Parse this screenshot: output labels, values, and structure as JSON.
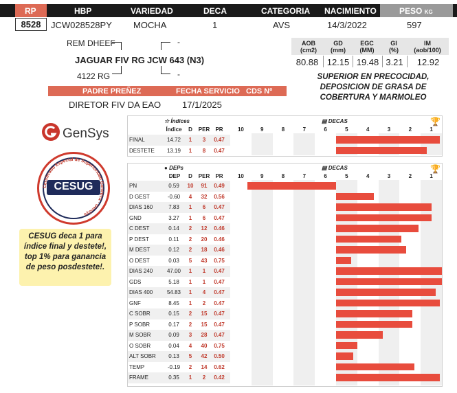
{
  "header": {
    "labels": {
      "rp": "RP",
      "hbp": "HBP",
      "variedad": "VARIEDAD",
      "deca": "DECA",
      "categoria": "CATEGORIA",
      "nacimiento": "NACIMIENTO",
      "peso": "PESO",
      "peso_unit": "KG"
    },
    "values": {
      "rp": "8528",
      "hbp": "JCW028528PY",
      "variedad": "MOCHA",
      "deca": "1",
      "categoria": "AVS",
      "nacimiento": "14/3/2022",
      "peso": "597"
    }
  },
  "pedigree": {
    "sire_sire": "REM DHEEF",
    "sire": "JAGUAR FIV RG",
    "sire_dam": "4122 RG",
    "dam": "JCW 643 (N3)",
    "dam_sire": "-",
    "dam_dam": "-"
  },
  "aob_table": {
    "headers": [
      {
        "name": "AOB",
        "unit": "(cm2)"
      },
      {
        "name": "GD",
        "unit": "(mm)"
      },
      {
        "name": "EGC",
        "unit": "(MM)"
      },
      {
        "name": "GI",
        "unit": "(%)"
      },
      {
        "name": "IM",
        "unit": "(aob/100)"
      }
    ],
    "values": [
      "80.88",
      "12.15",
      "19.48",
      "3.21",
      "12.92"
    ]
  },
  "description": "SUPERIOR EN PRECOCIDAD, DEPOSICION DE GRASA DE COBERTURA Y MARMOLEO",
  "service": {
    "labels": {
      "padre": "PADRE PREÑEZ",
      "fecha": "FECHA SERVICIO",
      "cds": "CDS Nº"
    },
    "padre": "DIRETOR FIV DA EAO",
    "fecha": "17/1/2025",
    "cds": ""
  },
  "logos": {
    "gensys": "GenSys",
    "seal_text": "CESUG",
    "seal_ring": "Certificado Especial de Superioridad Genética · GenSys"
  },
  "promo": "CESUG deca 1 para índice final y destete!, top 1% para ganancia de peso posdestete!.",
  "indices_table": {
    "section_label": "Índices",
    "decas_label": "DECAS",
    "columns": [
      "Índice",
      "D",
      "PER",
      "PR"
    ],
    "deca_ticks": [
      "10",
      "9",
      "8",
      "7",
      "6",
      "5",
      "4",
      "3",
      "2",
      "1"
    ],
    "trophy_icon": "trophy-icon",
    "rows": [
      {
        "name": "FINAL",
        "value": "14.72",
        "d": "1",
        "per": "3",
        "pr": "0.47",
        "bar": 4.9
      },
      {
        "name": "DESTETE",
        "value": "13.19",
        "d": "1",
        "per": "8",
        "pr": "0.47",
        "bar": 4.3
      }
    ]
  },
  "deps_table": {
    "section_label": "DEPs",
    "decas_label": "DECAS",
    "columns": [
      "DEP",
      "D",
      "PER",
      "PR"
    ],
    "deca_ticks": [
      "10",
      "9",
      "8",
      "7",
      "6",
      "5",
      "4",
      "3",
      "2",
      "1"
    ],
    "trophy_icon": "trophy-icon",
    "rows": [
      {
        "name": "PN",
        "value": "0.59",
        "d": "10",
        "per": "91",
        "pr": "0.49",
        "bar": -4.2
      },
      {
        "name": "D GEST",
        "value": "-0.60",
        "d": "4",
        "per": "32",
        "pr": "0.56",
        "bar": 1.8
      },
      {
        "name": "DIAS 160",
        "value": "7.83",
        "d": "1",
        "per": "6",
        "pr": "0.47",
        "bar": 4.5
      },
      {
        "name": "GND",
        "value": "3.27",
        "d": "1",
        "per": "6",
        "pr": "0.47",
        "bar": 4.5
      },
      {
        "name": "C DEST",
        "value": "0.14",
        "d": "2",
        "per": "12",
        "pr": "0.46",
        "bar": 3.9
      },
      {
        "name": "P DEST",
        "value": "0.11",
        "d": "2",
        "per": "20",
        "pr": "0.46",
        "bar": 3.1
      },
      {
        "name": "M DEST",
        "value": "0.12",
        "d": "2",
        "per": "18",
        "pr": "0.46",
        "bar": 3.3
      },
      {
        "name": "O DEST",
        "value": "0.03",
        "d": "5",
        "per": "43",
        "pr": "0.75",
        "bar": 0.7
      },
      {
        "name": "DIAS 240",
        "value": "47.00",
        "d": "1",
        "per": "1",
        "pr": "0.47",
        "bar": 5.0
      },
      {
        "name": "GDS",
        "value": "5.18",
        "d": "1",
        "per": "1",
        "pr": "0.47",
        "bar": 5.0
      },
      {
        "name": "DIAS 400",
        "value": "54.83",
        "d": "1",
        "per": "4",
        "pr": "0.47",
        "bar": 4.7
      },
      {
        "name": "GNF",
        "value": "8.45",
        "d": "1",
        "per": "2",
        "pr": "0.47",
        "bar": 4.9
      },
      {
        "name": "C SOBR",
        "value": "0.15",
        "d": "2",
        "per": "15",
        "pr": "0.47",
        "bar": 3.6
      },
      {
        "name": "P SOBR",
        "value": "0.17",
        "per": "15",
        "d": "2",
        "pr": "0.47",
        "bar": 3.6
      },
      {
        "name": "M SOBR",
        "value": "0.09",
        "d": "3",
        "per": "28",
        "pr": "0.47",
        "bar": 2.2
      },
      {
        "name": "O SOBR",
        "value": "0.04",
        "d": "4",
        "per": "40",
        "pr": "0.75",
        "bar": 1.0
      },
      {
        "name": "ALT SOBR",
        "value": "0.13",
        "d": "5",
        "per": "42",
        "pr": "0.50",
        "bar": 0.8
      },
      {
        "name": "TEMP",
        "value": "-0.19",
        "d": "2",
        "per": "14",
        "pr": "0.62",
        "bar": 3.7
      },
      {
        "name": "FRAME",
        "value": "0.35",
        "d": "1",
        "per": "2",
        "pr": "0.42",
        "bar": 4.9
      }
    ]
  },
  "colors": {
    "accent": "#dd6a55",
    "bar": "#e84c3d",
    "value_red": "#c0392b",
    "header": "#1a1a1a",
    "promo_bg": "#fdf2ae"
  }
}
